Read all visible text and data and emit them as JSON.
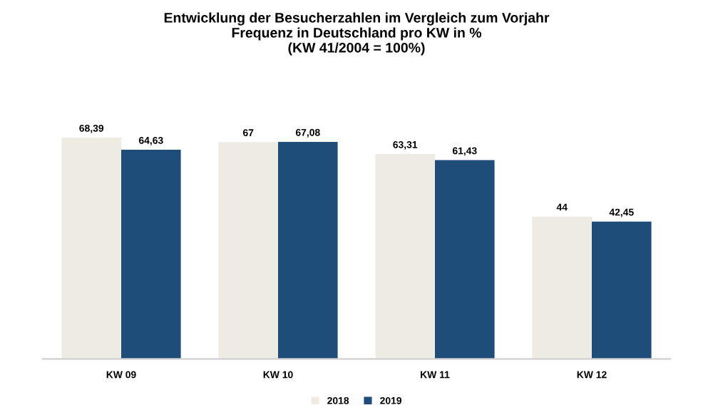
{
  "chart_data": {
    "type": "bar",
    "title": "Entwicklung der Besucherzahlen im Vergleich zum Vorjahr\nFrequenz in Deutschland pro KW in %\n(KW 41/2004 = 100%)",
    "categories": [
      "KW 09",
      "KW 10",
      "KW 11",
      "KW 12"
    ],
    "series": [
      {
        "name": "2018",
        "color": "#eeebe3",
        "values": [
          68.39,
          67,
          63.31,
          44
        ],
        "value_labels": [
          "68,39",
          "67",
          "63,31",
          "44"
        ]
      },
      {
        "name": "2019",
        "color": "#1f4d7a",
        "values": [
          64.63,
          67.08,
          61.43,
          42.45
        ],
        "value_labels": [
          "64,63",
          "67,08",
          "61,43",
          "42,45"
        ]
      }
    ],
    "legend": "bottom"
  }
}
